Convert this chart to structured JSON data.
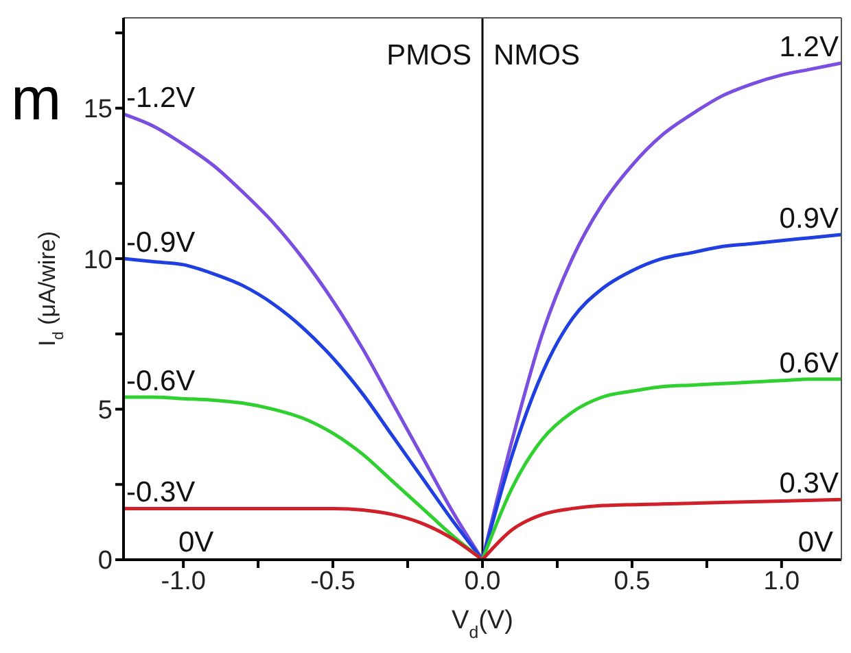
{
  "chart_data": {
    "type": "line",
    "xlabel": "V$_{d}$(V)",
    "ylabel": "I$_{d}$ (μA/wire)",
    "xlim": [
      -1.2,
      1.2
    ],
    "ylim": [
      0,
      18
    ],
    "xticks": [
      {
        "value": -1,
        "label": "-1.0"
      },
      {
        "value": -0.75,
        "label": null
      },
      {
        "value": -0.5,
        "label": "-0.5"
      },
      {
        "value": -0.25,
        "label": null
      },
      {
        "value": 0,
        "label": "0.0"
      },
      {
        "value": 0.25,
        "label": null
      },
      {
        "value": 0.5,
        "label": "0.5"
      },
      {
        "value": 0.75,
        "label": null
      },
      {
        "value": 1,
        "label": "1.0"
      }
    ],
    "yticks": [
      0,
      {
        "value": 2.5,
        "label": null
      },
      5,
      {
        "value": 7.5,
        "label": null
      },
      10,
      {
        "value": 12.5,
        "label": null
      },
      15,
      {
        "value": 17.5,
        "label": null
      }
    ],
    "grid": false,
    "legend": false,
    "marker": "none",
    "line_style": "solid",
    "ref_lines": [
      {
        "axis": "x",
        "value": 0,
        "label": null,
        "color": "#000000"
      }
    ],
    "annotations": [
      "m",
      "PMOS",
      "NMOS",
      "0V",
      "0V"
    ],
    "series": [
      {
        "name": "-1.2V",
        "color": "#7a4fe0",
        "x": [
          -1.2,
          -1.1,
          -1.0,
          -0.9,
          -0.8,
          -0.7,
          -0.6,
          -0.5,
          -0.4,
          -0.3,
          -0.2,
          -0.1,
          0
        ],
        "values": [
          14.8,
          14.4,
          13.8,
          13.1,
          12.2,
          11.2,
          10.0,
          8.6,
          7.0,
          5.2,
          3.4,
          1.6,
          0
        ]
      },
      {
        "name": "-0.9V",
        "color": "#1f3fe0",
        "x": [
          -1.2,
          -1.1,
          -1.0,
          -0.9,
          -0.8,
          -0.7,
          -0.6,
          -0.5,
          -0.4,
          -0.3,
          -0.2,
          -0.1,
          0
        ],
        "values": [
          10.0,
          9.9,
          9.8,
          9.5,
          9.1,
          8.5,
          7.7,
          6.7,
          5.5,
          4.1,
          2.7,
          1.3,
          0
        ]
      },
      {
        "name": "-0.6V",
        "color": "#2fd02f",
        "x": [
          -1.2,
          -1.1,
          -1.0,
          -0.9,
          -0.8,
          -0.7,
          -0.6,
          -0.5,
          -0.4,
          -0.3,
          -0.2,
          -0.1,
          0
        ],
        "values": [
          5.4,
          5.4,
          5.35,
          5.3,
          5.2,
          5.0,
          4.7,
          4.2,
          3.5,
          2.6,
          1.7,
          0.8,
          0
        ]
      },
      {
        "name": "-0.3V",
        "color": "#d0202a",
        "x": [
          -1.2,
          -1.0,
          -0.8,
          -0.6,
          -0.5,
          -0.4,
          -0.3,
          -0.2,
          -0.1,
          0
        ],
        "values": [
          1.7,
          1.7,
          1.7,
          1.7,
          1.7,
          1.65,
          1.5,
          1.2,
          0.7,
          0
        ]
      },
      {
        "name": "1.2V",
        "color": "#7a4fe0",
        "x": [
          0,
          0.1,
          0.2,
          0.3,
          0.4,
          0.5,
          0.6,
          0.7,
          0.8,
          0.9,
          1.0,
          1.1,
          1.2
        ],
        "values": [
          0,
          4.0,
          7.5,
          10.0,
          11.8,
          13.1,
          14.1,
          14.8,
          15.4,
          15.8,
          16.1,
          16.3,
          16.5
        ]
      },
      {
        "name": "0.9V",
        "color": "#1f3fe0",
        "x": [
          0,
          0.1,
          0.2,
          0.3,
          0.4,
          0.5,
          0.6,
          0.7,
          0.8,
          0.9,
          1.0,
          1.1,
          1.2
        ],
        "values": [
          0,
          3.5,
          6.2,
          8.0,
          9.0,
          9.6,
          10.0,
          10.2,
          10.4,
          10.5,
          10.6,
          10.7,
          10.8
        ]
      },
      {
        "name": "0.6V",
        "color": "#2fd02f",
        "x": [
          0,
          0.1,
          0.2,
          0.3,
          0.4,
          0.5,
          0.6,
          0.7,
          0.8,
          0.9,
          1.0,
          1.1,
          1.2
        ],
        "values": [
          0,
          2.4,
          4.0,
          4.9,
          5.4,
          5.6,
          5.75,
          5.8,
          5.85,
          5.9,
          5.95,
          6.0,
          6.0
        ]
      },
      {
        "name": "0.3V",
        "color": "#d0202a",
        "x": [
          0,
          0.1,
          0.2,
          0.3,
          0.4,
          0.6,
          0.8,
          1.0,
          1.2
        ],
        "values": [
          0,
          1.0,
          1.5,
          1.7,
          1.8,
          1.85,
          1.9,
          1.95,
          2.0
        ]
      }
    ]
  }
}
